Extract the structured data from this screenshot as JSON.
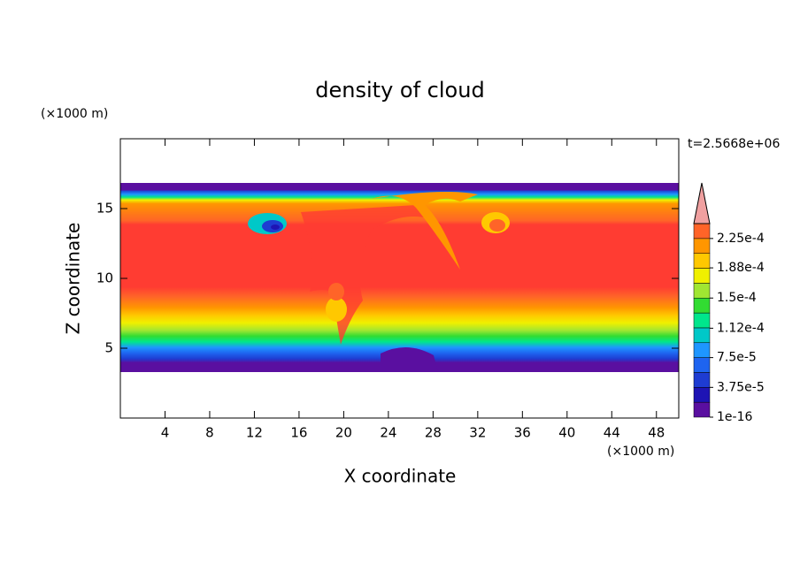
{
  "chart_data": {
    "type": "contour",
    "title": "density of cloud",
    "x_label": "X coordinate",
    "y_label": "Z coordinate",
    "x_unit": "(×1000 m)",
    "y_unit": "(×1000 m)",
    "annotation": "t=2.5668e+06",
    "xlim": [
      0,
      50
    ],
    "xticks": [
      4,
      8,
      12,
      16,
      20,
      24,
      28,
      32,
      36,
      40,
      44,
      48
    ],
    "ylim": [
      0,
      20
    ],
    "yticks": [
      5,
      10,
      15
    ],
    "colorbar": {
      "lim": [
        1e-16,
        0.00024375
      ],
      "ticks": [
        1e-16,
        {
          "value": 3.75e-05,
          "label": "3.75e-5"
        },
        {
          "value": 7.5e-05,
          "label": "7.5e-5"
        },
        {
          "value": 0.000112,
          "label": "1.12e-4"
        },
        {
          "value": 0.00015,
          "label": "1.5e-4"
        },
        {
          "value": 0.000188,
          "label": "1.88e-4"
        },
        {
          "value": 0.000225,
          "label": "2.25e-4"
        }
      ],
      "colors": [
        "#5a0fa0",
        "#1e14b4",
        "#1e3cd2",
        "#1e64f0",
        "#1e96ff",
        "#00c8c8",
        "#00e68c",
        "#32dc32",
        "#a0e632",
        "#f0f000",
        "#ffc800",
        "#ff9600",
        "#ff6428"
      ],
      "extend_color": "#f0a0a0"
    }
  }
}
